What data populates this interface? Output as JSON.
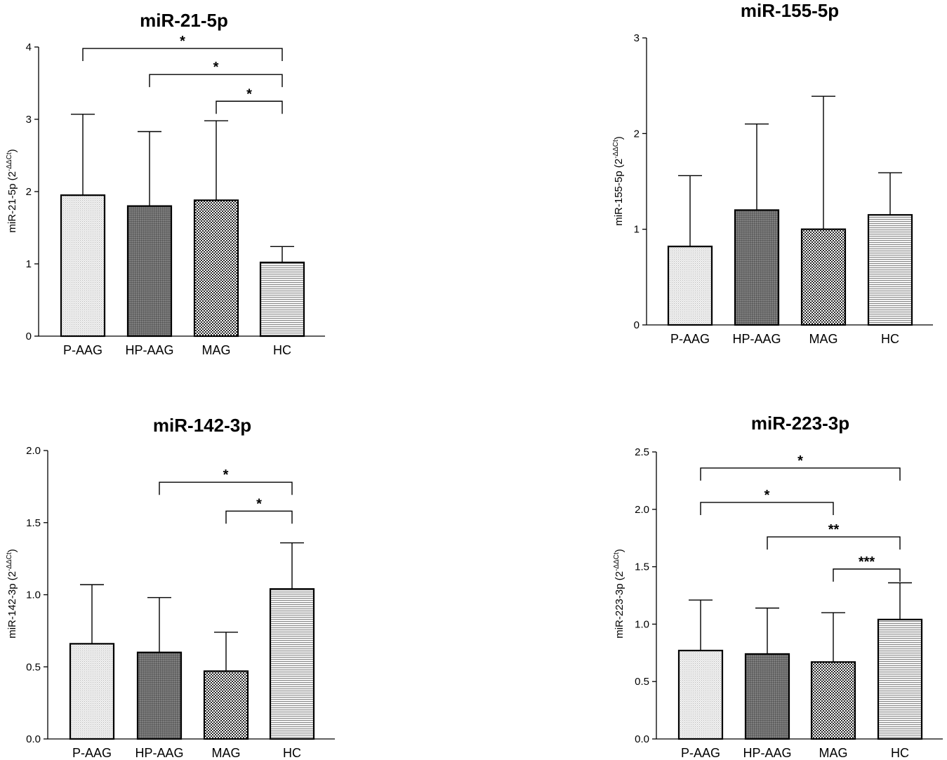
{
  "chart_data": [
    {
      "type": "bar",
      "title": "miR-21-5p",
      "ylabel_main": "miR-21-5p (2",
      "ylabel_sup": "-ΔΔCt",
      "ylabel_close": ")",
      "ylim": [
        0,
        4
      ],
      "yticks": [
        "0",
        "1",
        "2",
        "3",
        "4"
      ],
      "ytick_values": [
        0,
        1,
        2,
        3,
        4
      ],
      "categories": [
        "P-AAG",
        "HP-AAG",
        "MAG",
        "HC"
      ],
      "values": [
        1.95,
        1.8,
        1.88,
        1.02
      ],
      "error_upper": [
        3.07,
        2.83,
        2.98,
        1.24
      ],
      "significance": [
        {
          "from": 0,
          "to": 3,
          "y": 3.98,
          "label": "*"
        },
        {
          "from": 1,
          "to": 3,
          "y": 3.62,
          "label": "*"
        },
        {
          "from": 2,
          "to": 3,
          "y": 3.25,
          "label": "*"
        }
      ]
    },
    {
      "type": "bar",
      "title": "miR-155-5p",
      "ylabel_main": "miR-155-5p (2",
      "ylabel_sup": "-ΔΔCt",
      "ylabel_close": ")",
      "ylim": [
        0,
        3
      ],
      "yticks": [
        "0",
        "1",
        "2",
        "3"
      ],
      "ytick_values": [
        0,
        1,
        2,
        3
      ],
      "categories": [
        "P-AAG",
        "HP-AAG",
        "MAG",
        "HC"
      ],
      "values": [
        0.82,
        1.2,
        1.0,
        1.15
      ],
      "error_upper": [
        1.56,
        2.1,
        2.39,
        1.59
      ],
      "significance": []
    },
    {
      "type": "bar",
      "title": "miR-142-3p",
      "ylabel_main": "miR-142-3p (2",
      "ylabel_sup": "-ΔΔCt",
      "ylabel_close": ")",
      "ylim": [
        0,
        2.0
      ],
      "yticks": [
        "0.0",
        "0.5",
        "1.0",
        "1.5",
        "2.0"
      ],
      "ytick_values": [
        0,
        0.5,
        1.0,
        1.5,
        2.0
      ],
      "categories": [
        "P-AAG",
        "HP-AAG",
        "MAG",
        "HC"
      ],
      "values": [
        0.66,
        0.6,
        0.47,
        1.04
      ],
      "error_upper": [
        1.07,
        0.98,
        0.74,
        1.36
      ],
      "significance": [
        {
          "from": 1,
          "to": 3,
          "y": 1.78,
          "label": "*"
        },
        {
          "from": 2,
          "to": 3,
          "y": 1.58,
          "label": "*"
        }
      ]
    },
    {
      "type": "bar",
      "title": "miR-223-3p",
      "ylabel_main": "miR-223-3p (2",
      "ylabel_sup": "-ΔΔCt",
      "ylabel_close": ")",
      "ylim": [
        0,
        2.5
      ],
      "yticks": [
        "0.0",
        "0.5",
        "1.0",
        "1.5",
        "2.0",
        "2.5"
      ],
      "ytick_values": [
        0,
        0.5,
        1.0,
        1.5,
        2.0,
        2.5
      ],
      "categories": [
        "P-AAG",
        "HP-AAG",
        "MAG",
        "HC"
      ],
      "values": [
        0.77,
        0.74,
        0.67,
        1.04
      ],
      "error_upper": [
        1.21,
        1.14,
        1.1,
        1.36
      ],
      "significance": [
        {
          "from": 0,
          "to": 3,
          "y": 2.36,
          "label": "*"
        },
        {
          "from": 0,
          "to": 2,
          "y": 2.06,
          "label": "*"
        },
        {
          "from": 1,
          "to": 3,
          "y": 1.76,
          "label": "**"
        },
        {
          "from": 2,
          "to": 3,
          "y": 1.48,
          "label": "***"
        }
      ]
    }
  ]
}
